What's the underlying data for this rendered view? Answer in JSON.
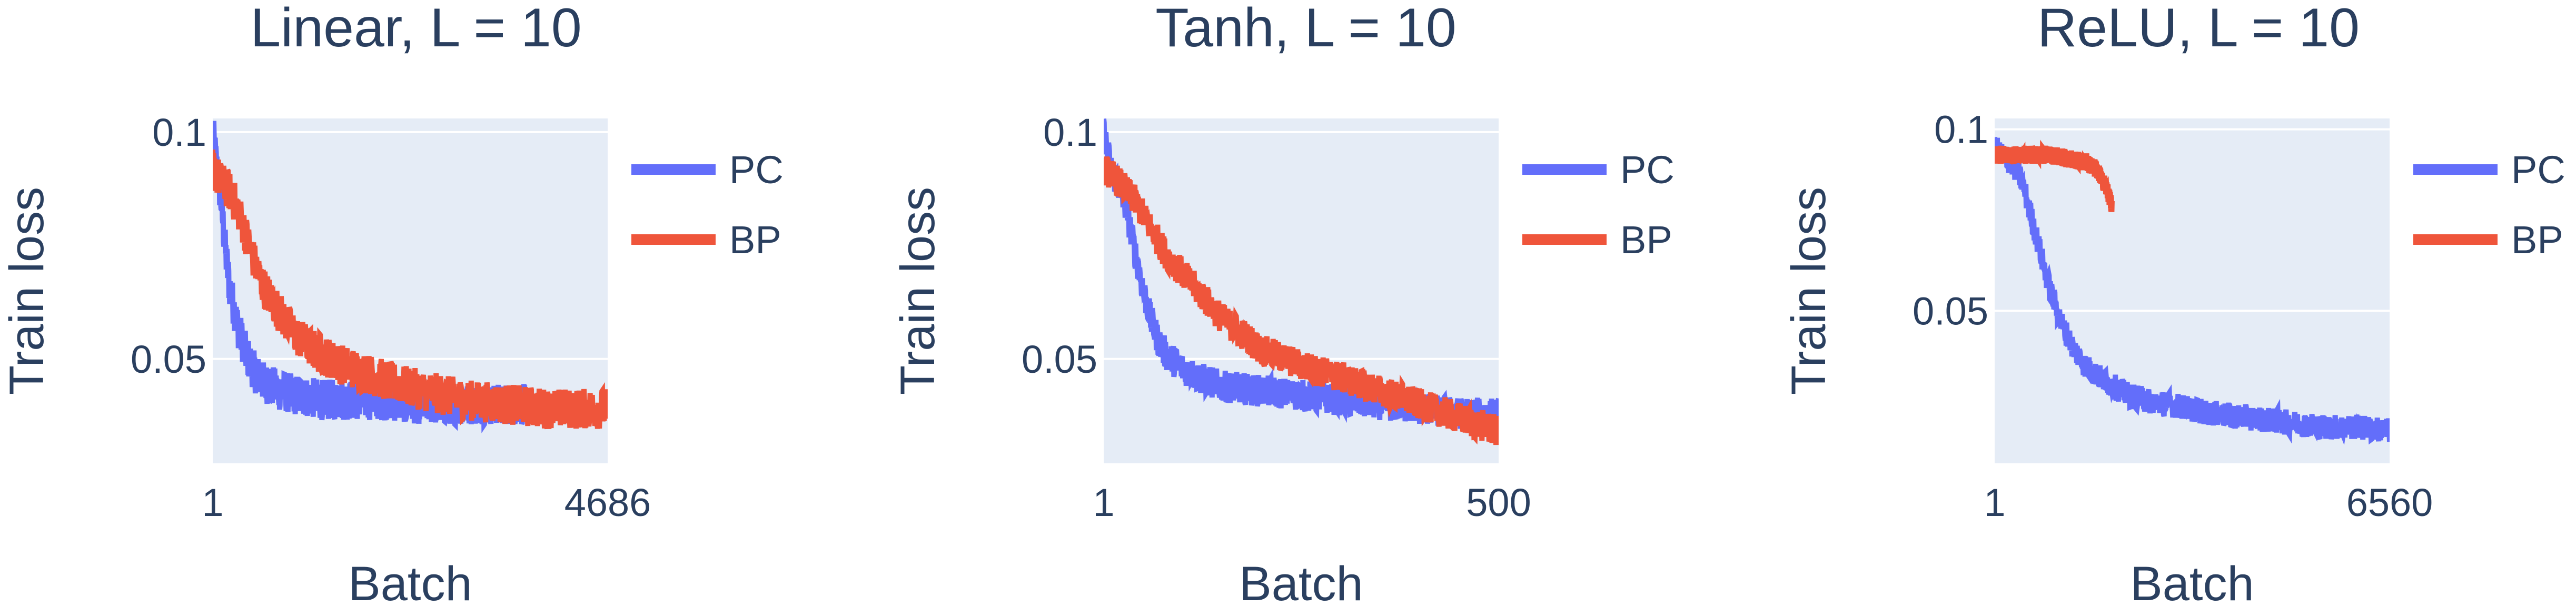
{
  "colors": {
    "pc": "#636efa",
    "bp": "#ef553b",
    "plot_bg": "#e5ecf6",
    "grid": "#ffffff",
    "text": "#2a3f5f"
  },
  "chart_data": [
    {
      "type": "line",
      "title": "Linear, L = 10",
      "xlabel": "Batch",
      "ylabel": "Train loss",
      "xlim": [
        1,
        4686
      ],
      "ylim": [
        0.027,
        0.103
      ],
      "xticks": [
        {
          "value": 1,
          "label": "1"
        },
        {
          "value": 4686,
          "label": "4686"
        }
      ],
      "yticks": [
        {
          "value": 0.05,
          "label": "0.05"
        },
        {
          "value": 0.1,
          "label": "0.1"
        }
      ],
      "grid": true,
      "legend_position": "right",
      "series": [
        {
          "name": "PC",
          "color": "#636efa",
          "x": [
            1,
            50,
            100,
            150,
            200,
            300,
            400,
            500,
            600,
            800,
            1000,
            1300,
            1600,
            2000,
            2500,
            3000,
            3500,
            3700
          ],
          "y": [
            0.1,
            0.092,
            0.085,
            0.074,
            0.066,
            0.057,
            0.051,
            0.047,
            0.045,
            0.043,
            0.042,
            0.041,
            0.041,
            0.041,
            0.04,
            0.04,
            0.04,
            0.04
          ],
          "noise": 0.0045
        },
        {
          "name": "BP",
          "color": "#ef553b",
          "x": [
            1,
            100,
            200,
            300,
            400,
            500,
            600,
            800,
            1000,
            1200,
            1500,
            1800,
            2100,
            2500,
            3000,
            3500,
            4000,
            4686
          ],
          "y": [
            0.092,
            0.089,
            0.087,
            0.083,
            0.077,
            0.071,
            0.066,
            0.06,
            0.055,
            0.052,
            0.049,
            0.047,
            0.045,
            0.043,
            0.041,
            0.04,
            0.039,
            0.039
          ],
          "noise": 0.0045
        }
      ]
    },
    {
      "type": "line",
      "title": "Tanh, L = 10",
      "xlabel": "Batch",
      "ylabel": "Train loss",
      "xlim": [
        1,
        500
      ],
      "ylim": [
        0.027,
        0.103
      ],
      "xticks": [
        {
          "value": 1,
          "label": "1"
        },
        {
          "value": 500,
          "label": "500"
        }
      ],
      "yticks": [
        {
          "value": 0.05,
          "label": "0.05"
        },
        {
          "value": 0.1,
          "label": "0.1"
        }
      ],
      "grid": true,
      "legend_position": "right",
      "series": [
        {
          "name": "PC",
          "color": "#636efa",
          "x": [
            1,
            10,
            20,
            30,
            40,
            50,
            60,
            70,
            80,
            100,
            120,
            150,
            200,
            250,
            300,
            350,
            400,
            450,
            500
          ],
          "y": [
            0.1,
            0.092,
            0.088,
            0.083,
            0.074,
            0.066,
            0.059,
            0.054,
            0.051,
            0.048,
            0.046,
            0.044,
            0.043,
            0.042,
            0.041,
            0.04,
            0.039,
            0.038,
            0.038
          ],
          "noise": 0.0035
        },
        {
          "name": "BP",
          "color": "#ef553b",
          "x": [
            1,
            20,
            40,
            60,
            80,
            100,
            120,
            150,
            180,
            200,
            230,
            260,
            300,
            350,
            400,
            450,
            500
          ],
          "y": [
            0.092,
            0.089,
            0.085,
            0.079,
            0.073,
            0.069,
            0.065,
            0.059,
            0.055,
            0.052,
            0.05,
            0.048,
            0.046,
            0.043,
            0.04,
            0.037,
            0.034
          ],
          "noise": 0.0035
        }
      ]
    },
    {
      "type": "line",
      "title": "ReLU, L = 10",
      "xlabel": "Batch",
      "ylabel": "Train loss",
      "xlim": [
        1,
        6560
      ],
      "ylim": [
        0.008,
        0.103
      ],
      "xticks": [
        {
          "value": 1,
          "label": "1"
        },
        {
          "value": 6560,
          "label": "6560"
        }
      ],
      "yticks": [
        {
          "value": 0.05,
          "label": "0.05"
        },
        {
          "value": 0.1,
          "label": "0.1"
        }
      ],
      "grid": true,
      "legend_position": "right",
      "series": [
        {
          "name": "PC",
          "color": "#636efa",
          "x": [
            1,
            200,
            400,
            500,
            700,
            900,
            1100,
            1300,
            1500,
            1800,
            2200,
            2600,
            3000,
            3500,
            4000,
            4500,
            5000,
            5500,
            6000,
            6560
          ],
          "y": [
            0.095,
            0.092,
            0.088,
            0.083,
            0.07,
            0.057,
            0.047,
            0.04,
            0.035,
            0.031,
            0.027,
            0.025,
            0.024,
            0.022,
            0.021,
            0.02,
            0.019,
            0.018,
            0.018,
            0.017
          ],
          "noise": 0.0035
        },
        {
          "name": "BP",
          "color": "#ef553b",
          "x": [
            1,
            300,
            600,
            900,
            1200,
            1500,
            1700,
            1850,
            1950
          ],
          "y": [
            0.093,
            0.093,
            0.093,
            0.093,
            0.092,
            0.091,
            0.089,
            0.084,
            0.079
          ],
          "noise": 0.0025
        }
      ]
    }
  ]
}
